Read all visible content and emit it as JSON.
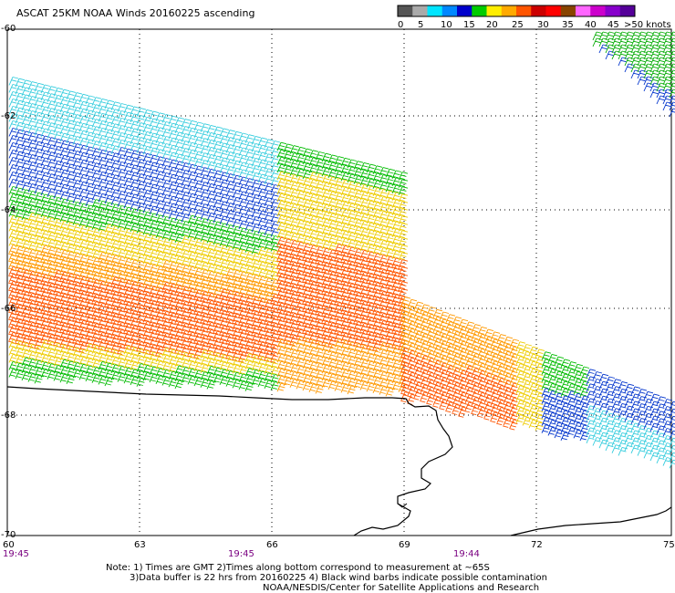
{
  "title": "ASCAT 25KM NOAA Winds 20160225 ascending",
  "legend": {
    "labels": [
      "0",
      "5",
      "10",
      "15",
      "20",
      "25",
      "30",
      "35",
      "40",
      "45",
      ">50 knots"
    ],
    "colors": [
      "#555555",
      "#aaaaaa",
      "#00e5ff",
      "#0088ff",
      "#0000cc",
      "#00cc00",
      "#ffee00",
      "#ffaa00",
      "#ff5500",
      "#cc0000",
      "#ff0000",
      "#884400",
      "#ff66ff",
      "#cc00cc",
      "#8800cc",
      "#550099"
    ]
  },
  "axes": {
    "lat_labels": [
      "-60",
      "-62",
      "-64",
      "-66",
      "-68",
      "-70"
    ],
    "lon_labels": [
      "60",
      "63",
      "66",
      "69",
      "72",
      "75"
    ]
  },
  "times": [
    "19:45",
    "19:45",
    "19:44"
  ],
  "notes": [
    "Note: 1) Times are GMT 2)Times along bottom correspond to measurement at ~65S",
    "3)Data buffer is 22 hrs from 20160225 4) Black wind barbs indicate possible contamination",
    "NOAA/NESDIS/Center for Satellite Applications and Research"
  ],
  "map_colors": {
    "coast": "#000000",
    "grid": "#000000"
  }
}
